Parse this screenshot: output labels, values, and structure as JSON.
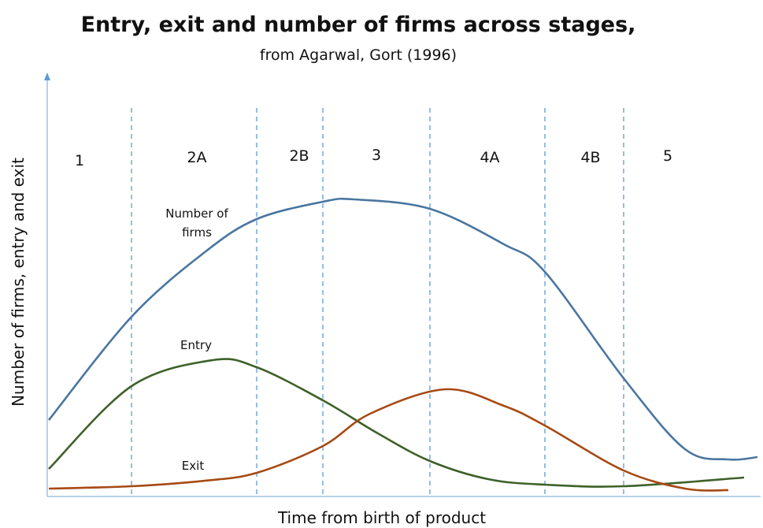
{
  "title": "Entry, exit and number of firms across stages,",
  "subtitle": "from Agarwal, Gort (1996)",
  "y_axis_label": "Number of firms, entry and exit",
  "x_axis_label": "Time from birth of product",
  "stages": [
    "1",
    "2A",
    "2B",
    "3",
    "4A",
    "4B",
    "5"
  ],
  "curve_labels": {
    "firms": [
      "Number of",
      "firms"
    ],
    "entry": "Entry",
    "exit": "Exit"
  }
}
